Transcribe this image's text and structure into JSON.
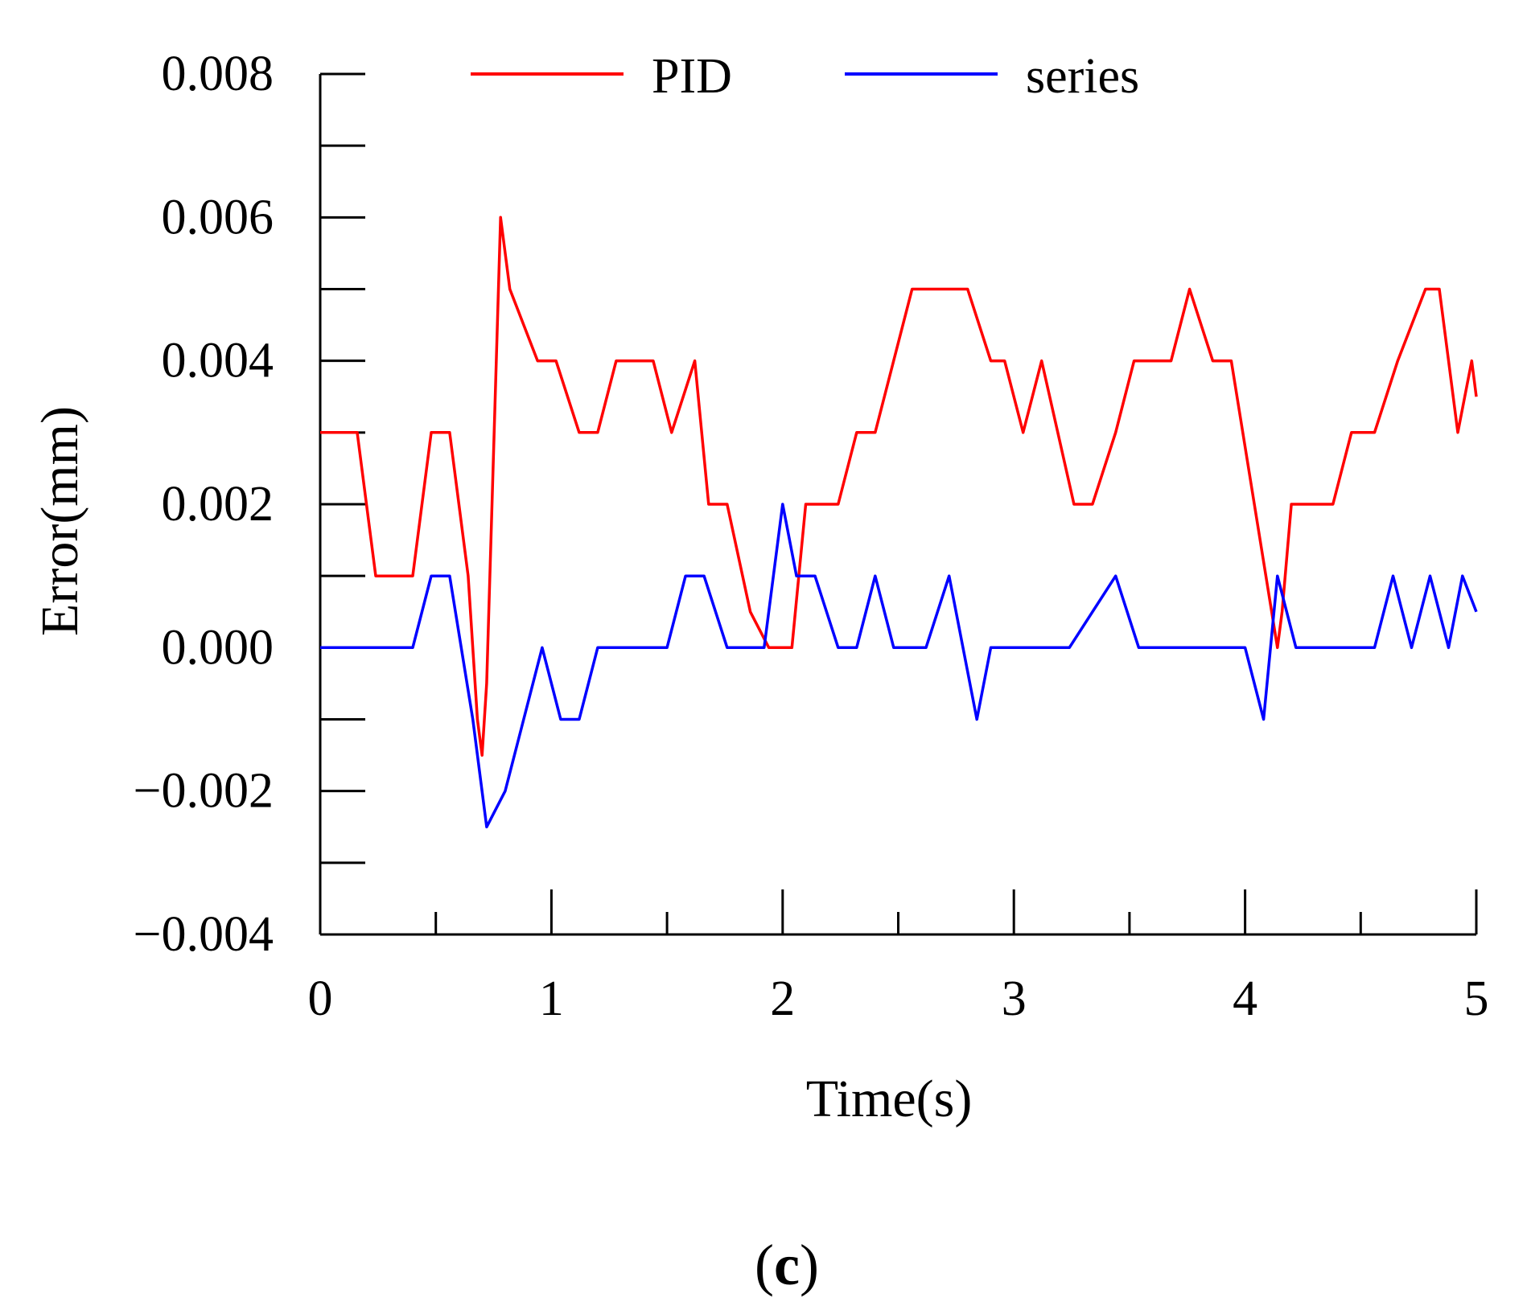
{
  "chart_data": {
    "type": "line",
    "panel_label": {
      "open": "(",
      "letter": "c",
      "close": ")"
    },
    "xlabel": "Time(s)",
    "ylabel": "Error(mm)",
    "xlim": [
      0,
      5
    ],
    "ylim": [
      -0.004,
      0.008
    ],
    "x_major_ticks": [
      0,
      1,
      2,
      3,
      4,
      5
    ],
    "x_tick_labels": [
      "0",
      "1",
      "2",
      "3",
      "4",
      "5"
    ],
    "x_minor_step": 0.5,
    "y_major_ticks": [
      -0.004,
      -0.002,
      0.0,
      0.002,
      0.004,
      0.006,
      0.008
    ],
    "y_tick_labels": [
      "−0.004",
      "−0.002",
      "0.000",
      "0.002",
      "0.004",
      "0.006",
      "0.008"
    ],
    "y_minor_step": 0.001,
    "legend": {
      "position": "top"
    },
    "series": [
      {
        "name": "PID",
        "color": "#ff0000",
        "x": [
          0,
          0.16,
          0.24,
          0.4,
          0.48,
          0.56,
          0.64,
          0.68,
          0.7,
          0.72,
          0.78,
          0.82,
          0.94,
          1.02,
          1.12,
          1.2,
          1.28,
          1.44,
          1.52,
          1.62,
          1.68,
          1.76,
          1.86,
          1.94,
          2.04,
          2.1,
          2.24,
          2.32,
          2.4,
          2.56,
          2.72,
          2.8,
          2.9,
          2.96,
          3.04,
          3.12,
          3.26,
          3.34,
          3.44,
          3.52,
          3.68,
          3.76,
          3.86,
          3.94,
          4.04,
          4.14,
          4.16,
          4.2,
          4.24,
          4.38,
          4.46,
          4.56,
          4.66,
          4.78,
          4.84,
          4.92,
          4.98,
          5
        ],
        "y": [
          0.003,
          0.003,
          0.001,
          0.001,
          0.003,
          0.003,
          0.001,
          -0.001,
          -0.0015,
          -0.0005,
          0.006,
          0.005,
          0.004,
          0.004,
          0.003,
          0.003,
          0.004,
          0.004,
          0.003,
          0.004,
          0.002,
          0.002,
          0.0005,
          0.0,
          0.0,
          0.002,
          0.002,
          0.003,
          0.003,
          0.005,
          0.005,
          0.005,
          0.004,
          0.004,
          0.003,
          0.004,
          0.002,
          0.002,
          0.003,
          0.004,
          0.004,
          0.005,
          0.004,
          0.004,
          0.002,
          0.0,
          0.0005,
          0.002,
          0.002,
          0.002,
          0.003,
          0.003,
          0.004,
          0.005,
          0.005,
          0.003,
          0.004,
          0.0035
        ]
      },
      {
        "name": "series",
        "color": "#0000ff",
        "x": [
          0,
          0.4,
          0.48,
          0.56,
          0.66,
          0.72,
          0.8,
          0.88,
          0.96,
          1.04,
          1.12,
          1.2,
          1.5,
          1.58,
          1.66,
          1.76,
          1.92,
          2.0,
          2.06,
          2.14,
          2.24,
          2.32,
          2.4,
          2.48,
          2.62,
          2.72,
          2.84,
          2.9,
          2.98,
          3.24,
          3.44,
          3.54,
          3.78,
          4.0,
          4.08,
          4.14,
          4.22,
          4.56,
          4.64,
          4.72,
          4.8,
          4.88,
          4.94,
          5
        ],
        "y": [
          0.0,
          0.0,
          0.001,
          0.001,
          -0.001,
          -0.0025,
          -0.002,
          -0.001,
          0.0,
          -0.001,
          -0.001,
          0.0,
          0.0,
          0.001,
          0.001,
          0.0,
          0.0,
          0.002,
          0.001,
          0.001,
          0.0,
          0.0,
          0.001,
          0.0,
          0.0,
          0.001,
          -0.001,
          0.0,
          0.0,
          0.0,
          0.001,
          0.0,
          0.0,
          0.0,
          -0.001,
          0.001,
          0.0,
          0.0,
          0.001,
          0.0,
          0.001,
          0.0,
          0.001,
          0.0005
        ]
      }
    ]
  }
}
